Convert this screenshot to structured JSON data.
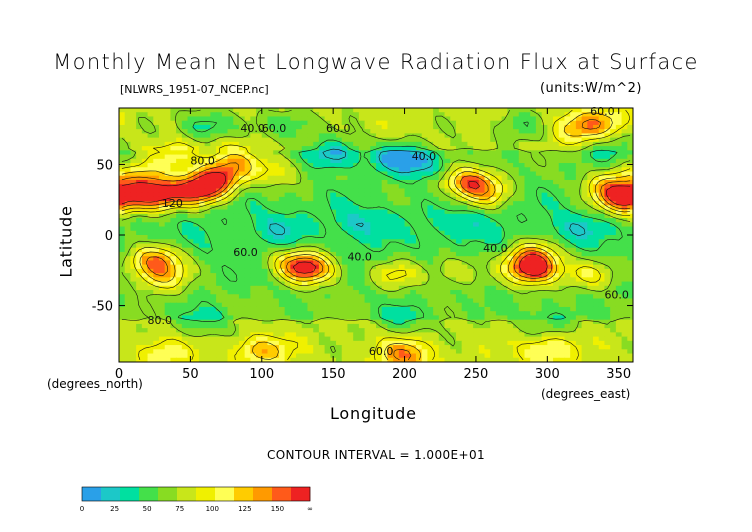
{
  "chart_data": {
    "type": "heatmap",
    "title": "Monthly Mean Net Longwave Radiation Flux at Surface",
    "subtitle": "[NLWRS_1951-07_NCEP.nc]",
    "units": "(units:W/m^2)",
    "xlabel": "Longitude",
    "ylabel": "Latitude",
    "xunit_label": "(degrees_east)",
    "yunit_label": "(degrees_north)",
    "xlim": [
      0,
      360
    ],
    "ylim": [
      -90,
      90
    ],
    "xticks": [
      0,
      50,
      100,
      150,
      200,
      250,
      300,
      350
    ],
    "yticks": [
      -50,
      0,
      50
    ],
    "contour_interval_text": "CONTOUR INTERVAL = 1.000E+01",
    "contour_labels": [
      "40.0",
      "60.0",
      "80.0",
      "120",
      "60.0",
      "40.0",
      "60.0",
      "40.0",
      "60.0",
      "60.0",
      "40.0",
      "80.0",
      "60.0"
    ],
    "colorbar": {
      "levels": [
        0,
        25,
        50,
        75,
        100,
        125,
        150
      ],
      "tick_labels": [
        "0",
        "25",
        "50",
        "75",
        "100",
        "125",
        "150",
        "∞"
      ],
      "colors": [
        "#2aa0e8",
        "#1cc8c8",
        "#00e0a0",
        "#44e04a",
        "#88dc22",
        "#c8e61a",
        "#f0f000",
        "#ffff55",
        "#ffcc00",
        "#ff9a00",
        "#ff5a1a",
        "#ee2222"
      ]
    },
    "blobs": [
      {
        "lon": 25,
        "lat": 28,
        "value": 155
      },
      {
        "lon": 55,
        "lat": 32,
        "value": 150
      },
      {
        "lon": 70,
        "lat": 40,
        "value": 120
      },
      {
        "lon": 15,
        "lat": 40,
        "value": 100
      },
      {
        "lon": 80,
        "lat": 52,
        "value": 95
      },
      {
        "lon": 40,
        "lat": 55,
        "value": 90
      },
      {
        "lon": 110,
        "lat": 45,
        "value": 80
      },
      {
        "lon": 245,
        "lat": 38,
        "value": 120
      },
      {
        "lon": 255,
        "lat": 30,
        "value": 95
      },
      {
        "lon": 355,
        "lat": 25,
        "value": 150
      },
      {
        "lon": 345,
        "lat": 35,
        "value": 105
      },
      {
        "lon": 25,
        "lat": -18,
        "value": 125
      },
      {
        "lon": 30,
        "lat": -30,
        "value": 100
      },
      {
        "lon": 135,
        "lat": -25,
        "value": 120
      },
      {
        "lon": 125,
        "lat": -20,
        "value": 105
      },
      {
        "lon": 290,
        "lat": -25,
        "value": 150
      },
      {
        "lon": 290,
        "lat": -15,
        "value": 115
      },
      {
        "lon": 195,
        "lat": -28,
        "value": 85
      },
      {
        "lon": 235,
        "lat": -25,
        "value": 80
      },
      {
        "lon": 330,
        "lat": -28,
        "value": 85
      },
      {
        "lon": 320,
        "lat": 75,
        "value": 90
      },
      {
        "lon": 340,
        "lat": 80,
        "value": 85
      },
      {
        "lon": 150,
        "lat": 58,
        "value": 5
      },
      {
        "lon": 195,
        "lat": 55,
        "value": 8
      },
      {
        "lon": 215,
        "lat": 50,
        "value": 18
      },
      {
        "lon": 60,
        "lat": 78,
        "value": 12
      },
      {
        "lon": 120,
        "lat": 78,
        "value": 18
      },
      {
        "lon": 280,
        "lat": 78,
        "value": 25
      },
      {
        "lon": 345,
        "lat": 62,
        "value": 28
      },
      {
        "lon": 110,
        "lat": 5,
        "value": 30
      },
      {
        "lon": 170,
        "lat": 8,
        "value": 28
      },
      {
        "lon": 240,
        "lat": 8,
        "value": 30
      },
      {
        "lon": 320,
        "lat": 5,
        "value": 30
      },
      {
        "lon": 60,
        "lat": -62,
        "value": 25
      },
      {
        "lon": 200,
        "lat": -60,
        "value": 25
      },
      {
        "lon": 300,
        "lat": -62,
        "value": 28
      },
      {
        "lon": 100,
        "lat": -82,
        "value": 95
      },
      {
        "lon": 200,
        "lat": -85,
        "value": 105
      },
      {
        "lon": 300,
        "lat": -82,
        "value": 90
      },
      {
        "lon": 30,
        "lat": -84,
        "value": 80
      }
    ]
  }
}
